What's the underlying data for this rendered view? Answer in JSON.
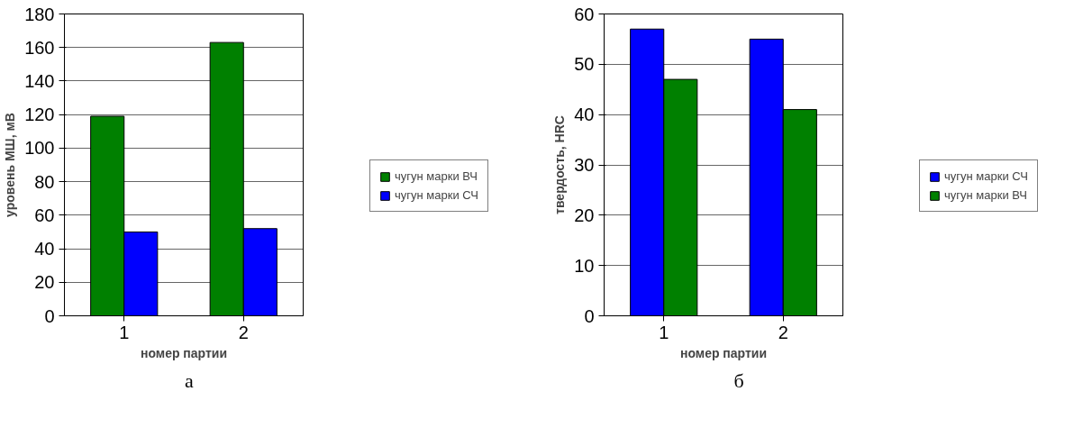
{
  "chart_data": [
    {
      "type": "bar",
      "categories": [
        "1",
        "2"
      ],
      "xlabel": "номер партии",
      "ylabel": "уровень МШ, мВ",
      "ylim": [
        0,
        180
      ],
      "yticks": [
        0,
        20,
        40,
        60,
        80,
        100,
        120,
        140,
        160,
        180
      ],
      "grid": "y",
      "legend": "right",
      "annotations": [
        "а"
      ],
      "series": [
        {
          "name": "чугун марки ВЧ",
          "color": "#008000",
          "values": [
            119,
            163
          ]
        },
        {
          "name": "чугун марки СЧ",
          "color": "#0000ff",
          "values": [
            50,
            52
          ]
        }
      ]
    },
    {
      "type": "bar",
      "categories": [
        "1",
        "2"
      ],
      "xlabel": "номер партии",
      "ylabel": "твердость, HRC",
      "ylim": [
        0,
        60
      ],
      "yticks": [
        0,
        10,
        20,
        30,
        40,
        50,
        60
      ],
      "grid": "y",
      "legend": "right",
      "annotations": [
        "б"
      ],
      "series": [
        {
          "name": "чугун марки СЧ",
          "color": "#0000ff",
          "values": [
            57,
            55
          ]
        },
        {
          "name": "чугун марки ВЧ",
          "color": "#008000",
          "values": [
            47,
            41
          ]
        }
      ]
    }
  ]
}
